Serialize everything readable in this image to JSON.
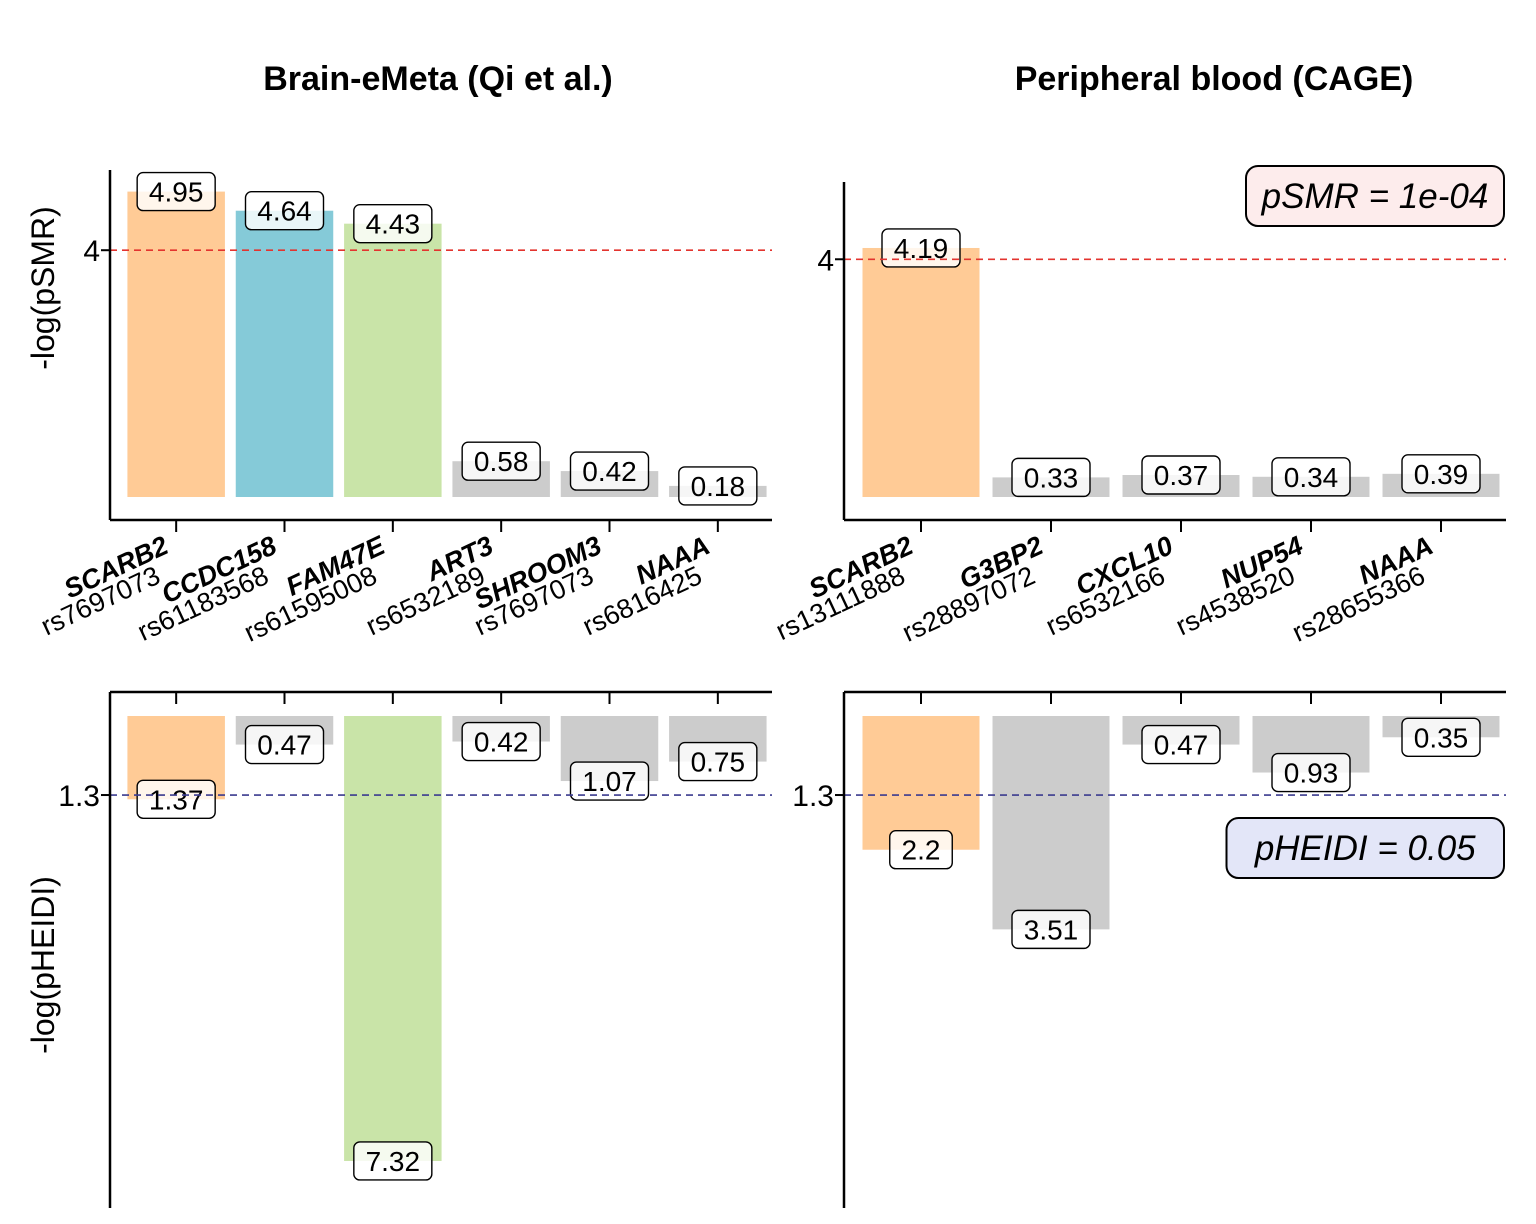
{
  "chart_data": [
    {
      "type": "bar",
      "title": "Brain-eMeta (Qi et al.)",
      "ylabel": "-log(pSMR)",
      "ylim": [
        0,
        5.3
      ],
      "yticks": [
        "4"
      ],
      "threshold": 4,
      "threshold_color": "#e3342f",
      "categories": [
        {
          "gene": "SCARB2",
          "snp": "rs7697073"
        },
        {
          "gene": "CCDC158",
          "snp": "rs61183568"
        },
        {
          "gene": "FAM47E",
          "snp": "rs61595008"
        },
        {
          "gene": "ART3",
          "snp": "rs6532189"
        },
        {
          "gene": "SHROOM3",
          "snp": "rs7697073"
        },
        {
          "gene": "NAAA",
          "snp": "rs6816425"
        }
      ],
      "values": [
        4.95,
        4.64,
        4.43,
        0.58,
        0.42,
        0.18
      ],
      "labels": [
        "4.95",
        "4.64",
        "4.43",
        "0.58",
        "0.42",
        "0.18"
      ],
      "colors": [
        "#ffcb96",
        "#85cad8",
        "#c9e4a8",
        "#cccccc",
        "#cccccc",
        "#cccccc"
      ],
      "annotation": ""
    },
    {
      "type": "bar",
      "title": "Peripheral blood (CAGE)",
      "ylabel": "",
      "ylim": [
        0,
        5.3
      ],
      "yticks": [
        "4"
      ],
      "threshold": 4,
      "threshold_color": "#e3342f",
      "categories": [
        {
          "gene": "SCARB2",
          "snp": "rs13111888"
        },
        {
          "gene": "G3BP2",
          "snp": "rs28897072"
        },
        {
          "gene": "CXCL10",
          "snp": "rs6532166"
        },
        {
          "gene": "NUP54",
          "snp": "rs4538520"
        },
        {
          "gene": "NAAA",
          "snp": "rs28655366"
        }
      ],
      "values": [
        4.19,
        0.33,
        0.37,
        0.34,
        0.39
      ],
      "labels": [
        "4.19",
        "0.33",
        "0.37",
        "0.34",
        "0.39"
      ],
      "colors": [
        "#ffcb96",
        "#cccccc",
        "#cccccc",
        "#cccccc",
        "#cccccc"
      ],
      "annotation": "pSMR = 1e-04",
      "annotation_fill": "#fdecec"
    },
    {
      "type": "bar",
      "title": "",
      "ylabel": "-log(pHEIDI)",
      "orientation": "reversed",
      "ylim": [
        0,
        7.6
      ],
      "yticks": [
        "1.3"
      ],
      "threshold": 1.3,
      "threshold_color": "#3b3b8f",
      "values": [
        1.37,
        0.47,
        7.32,
        0.42,
        1.07,
        0.75
      ],
      "labels": [
        "1.37",
        "0.47",
        "7.32",
        "0.42",
        "1.07",
        "0.75"
      ],
      "colors": [
        "#ffcb96",
        "#cccccc",
        "#c9e4a8",
        "#cccccc",
        "#cccccc",
        "#cccccc"
      ],
      "annotation": ""
    },
    {
      "type": "bar",
      "title": "",
      "ylabel": "",
      "orientation": "reversed",
      "ylim": [
        0,
        7.6
      ],
      "yticks": [
        "1.3"
      ],
      "threshold": 1.3,
      "threshold_color": "#3b3b8f",
      "values": [
        2.2,
        3.51,
        0.47,
        0.93,
        0.35
      ],
      "labels": [
        "2.2",
        "3.51",
        "0.47",
        "0.93",
        "0.35"
      ],
      "colors": [
        "#ffcb96",
        "#cccccc",
        "#cccccc",
        "#cccccc",
        "#cccccc"
      ],
      "annotation": "pHEIDI = 0.05",
      "annotation_fill": "#e3e6f8"
    }
  ]
}
